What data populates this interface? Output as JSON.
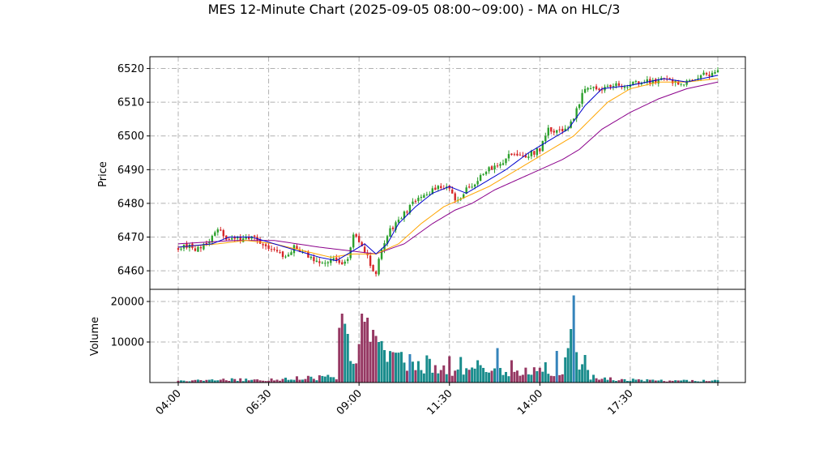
{
  "chart_data": {
    "type": "candlestick",
    "title": "MES 12-Minute Chart (2025-09-05 08:00~09:00) - MA on HLC/3",
    "x_tick_labels": [
      "04:00",
      "06:30",
      "09:00",
      "11:30",
      "14:00",
      "17:30"
    ],
    "price_panel": {
      "ylabel": "Price",
      "yticks": [
        6460,
        6470,
        6480,
        6490,
        6500,
        6510,
        6520
      ],
      "ylim": [
        6454.5,
        6523.5
      ],
      "grid": true,
      "anchors": [
        [
          0,
          6467
        ],
        [
          3,
          6467.5
        ],
        [
          6,
          6466
        ],
        [
          10,
          6468
        ],
        [
          14,
          6472
        ],
        [
          18,
          6469
        ],
        [
          23,
          6469.5
        ],
        [
          27,
          6470
        ],
        [
          32,
          6467
        ],
        [
          35,
          6466
        ],
        [
          38,
          6464
        ],
        [
          41,
          6467
        ],
        [
          44,
          6466
        ],
        [
          48,
          6463
        ],
        [
          52,
          6462
        ],
        [
          55,
          6464
        ],
        [
          57,
          6462
        ],
        [
          60,
          6464
        ],
        [
          62,
          6471
        ],
        [
          64,
          6469
        ],
        [
          66,
          6466
        ],
        [
          68,
          6462
        ],
        [
          70,
          6459
        ],
        [
          72,
          6467
        ],
        [
          75,
          6472
        ],
        [
          79,
          6476
        ],
        [
          83,
          6480
        ],
        [
          88,
          6483
        ],
        [
          92,
          6485
        ],
        [
          96,
          6485
        ],
        [
          98,
          6481
        ],
        [
          100,
          6482
        ],
        [
          103,
          6485
        ],
        [
          106,
          6487
        ],
        [
          110,
          6490
        ],
        [
          113,
          6491
        ],
        [
          118,
          6495
        ],
        [
          123,
          6494
        ],
        [
          128,
          6496
        ],
        [
          131,
          6502
        ],
        [
          133,
          6501
        ],
        [
          137,
          6502
        ],
        [
          140,
          6505
        ],
        [
          142,
          6510
        ],
        [
          144,
          6514
        ],
        [
          148,
          6514
        ],
        [
          153,
          6515
        ],
        [
          158,
          6515
        ],
        [
          163,
          6516
        ],
        [
          168,
          6516
        ],
        [
          172,
          6517
        ],
        [
          175,
          6516
        ],
        [
          179,
          6515
        ],
        [
          182,
          6517
        ],
        [
          186,
          6518
        ],
        [
          191,
          6519
        ]
      ],
      "ma_fast": [
        [
          0,
          6467
        ],
        [
          12,
          6468
        ],
        [
          18,
          6470
        ],
        [
          26,
          6470
        ],
        [
          34,
          6468
        ],
        [
          42,
          6466
        ],
        [
          50,
          6464
        ],
        [
          56,
          6463
        ],
        [
          62,
          6466
        ],
        [
          66,
          6468
        ],
        [
          70,
          6465
        ],
        [
          74,
          6468
        ],
        [
          78,
          6474
        ],
        [
          84,
          6479
        ],
        [
          90,
          6483
        ],
        [
          96,
          6485
        ],
        [
          102,
          6483
        ],
        [
          108,
          6486
        ],
        [
          116,
          6490
        ],
        [
          124,
          6495
        ],
        [
          132,
          6499
        ],
        [
          138,
          6502
        ],
        [
          144,
          6509
        ],
        [
          150,
          6514
        ],
        [
          160,
          6515
        ],
        [
          172,
          6517
        ],
        [
          180,
          6516
        ],
        [
          191,
          6518
        ]
      ],
      "ma_mid": [
        [
          0,
          6467
        ],
        [
          14,
          6468
        ],
        [
          24,
          6469
        ],
        [
          34,
          6468
        ],
        [
          44,
          6466
        ],
        [
          54,
          6464
        ],
        [
          62,
          6465
        ],
        [
          70,
          6465
        ],
        [
          78,
          6468
        ],
        [
          86,
          6474
        ],
        [
          94,
          6479
        ],
        [
          102,
          6482
        ],
        [
          110,
          6485
        ],
        [
          118,
          6489
        ],
        [
          126,
          6493
        ],
        [
          134,
          6497
        ],
        [
          140,
          6500
        ],
        [
          146,
          6505
        ],
        [
          152,
          6510
        ],
        [
          160,
          6514
        ],
        [
          170,
          6516
        ],
        [
          180,
          6516
        ],
        [
          191,
          6517
        ]
      ],
      "ma_slow": [
        [
          0,
          6468
        ],
        [
          20,
          6469
        ],
        [
          34,
          6469
        ],
        [
          50,
          6467
        ],
        [
          60,
          6466
        ],
        [
          70,
          6465
        ],
        [
          80,
          6468
        ],
        [
          90,
          6474
        ],
        [
          98,
          6478
        ],
        [
          104,
          6480
        ],
        [
          112,
          6484
        ],
        [
          120,
          6487
        ],
        [
          128,
          6490
        ],
        [
          136,
          6493
        ],
        [
          142,
          6496
        ],
        [
          150,
          6502
        ],
        [
          160,
          6507
        ],
        [
          170,
          6511
        ],
        [
          180,
          6514
        ],
        [
          191,
          6516
        ]
      ],
      "colors": {
        "up": "#2ca02c",
        "down": "#d62728",
        "ma_fast": "#0000cd",
        "ma_mid": "#ffa500",
        "ma_slow": "#8b008b"
      }
    },
    "volume_panel": {
      "ylabel": "Volume",
      "yticks": [
        10000,
        20000
      ],
      "ylim": [
        0,
        23000
      ],
      "grid": true,
      "baseline": [
        [
          0,
          400
        ],
        [
          20,
          800
        ],
        [
          30,
          600
        ],
        [
          40,
          1100
        ],
        [
          52,
          1300
        ],
        [
          56,
          1600
        ],
        [
          57,
          5500
        ],
        [
          62,
          4500
        ],
        [
          64,
          9000
        ],
        [
          70,
          10000
        ],
        [
          74,
          7000
        ],
        [
          80,
          5000
        ],
        [
          90,
          4000
        ],
        [
          100,
          3000
        ],
        [
          110,
          3000
        ],
        [
          120,
          2500
        ],
        [
          130,
          2800
        ],
        [
          136,
          3500
        ],
        [
          138,
          5000
        ],
        [
          140,
          8000
        ],
        [
          143,
          5000
        ],
        [
          146,
          1500
        ],
        [
          155,
          800
        ],
        [
          170,
          500
        ],
        [
          191,
          500
        ]
      ],
      "spikes": [
        [
          57,
          13500
        ],
        [
          58,
          17000
        ],
        [
          59,
          14500
        ],
        [
          60,
          12000
        ],
        [
          64,
          9500
        ],
        [
          65,
          17000
        ],
        [
          66,
          15000
        ],
        [
          67,
          16000
        ],
        [
          68,
          10000
        ],
        [
          69,
          13000
        ],
        [
          70,
          11500
        ],
        [
          71,
          10000
        ],
        [
          73,
          8000
        ],
        [
          76,
          7500
        ],
        [
          82,
          7000
        ],
        [
          88,
          6700
        ],
        [
          96,
          6500
        ],
        [
          100,
          6300
        ],
        [
          106,
          5500
        ],
        [
          113,
          8500
        ],
        [
          118,
          5500
        ],
        [
          130,
          5000
        ],
        [
          134,
          7800
        ],
        [
          137,
          6200
        ],
        [
          138,
          8500
        ],
        [
          139,
          13200
        ],
        [
          140,
          21500
        ],
        [
          141,
          7500
        ],
        [
          144,
          6800
        ]
      ],
      "colors": {
        "up": "#008080",
        "down": "#8b2252",
        "third": "#1f77b4"
      }
    }
  }
}
